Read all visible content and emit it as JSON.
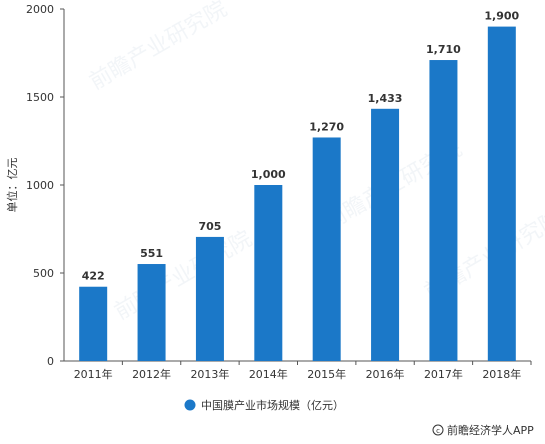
{
  "chart_data": {
    "type": "bar",
    "categories": [
      "2011年",
      "2012年",
      "2013年",
      "2014年",
      "2015年",
      "2016年",
      "2017年",
      "2018年"
    ],
    "series": [
      {
        "name": "中国膜产业市场规模（亿元）",
        "values": [
          422,
          551,
          705,
          1000,
          1270,
          1433,
          1710,
          1900
        ],
        "labels": [
          "422",
          "551",
          "705",
          "1,000",
          "1,270",
          "1,433",
          "1,710",
          "1,900"
        ],
        "color": "#1b78c8"
      }
    ],
    "title": "",
    "xlabel": "",
    "ylabel": "单位：亿元",
    "ylim": [
      0,
      2000
    ],
    "yticks": [
      "0",
      "500",
      "1000",
      "1500",
      "2000"
    ],
    "grid": false,
    "legend_position": "bottom"
  },
  "source": {
    "icon": "copyright-icon",
    "text": "前瞻经济学人APP"
  },
  "watermark": {
    "text": "前瞻产业研究院"
  }
}
